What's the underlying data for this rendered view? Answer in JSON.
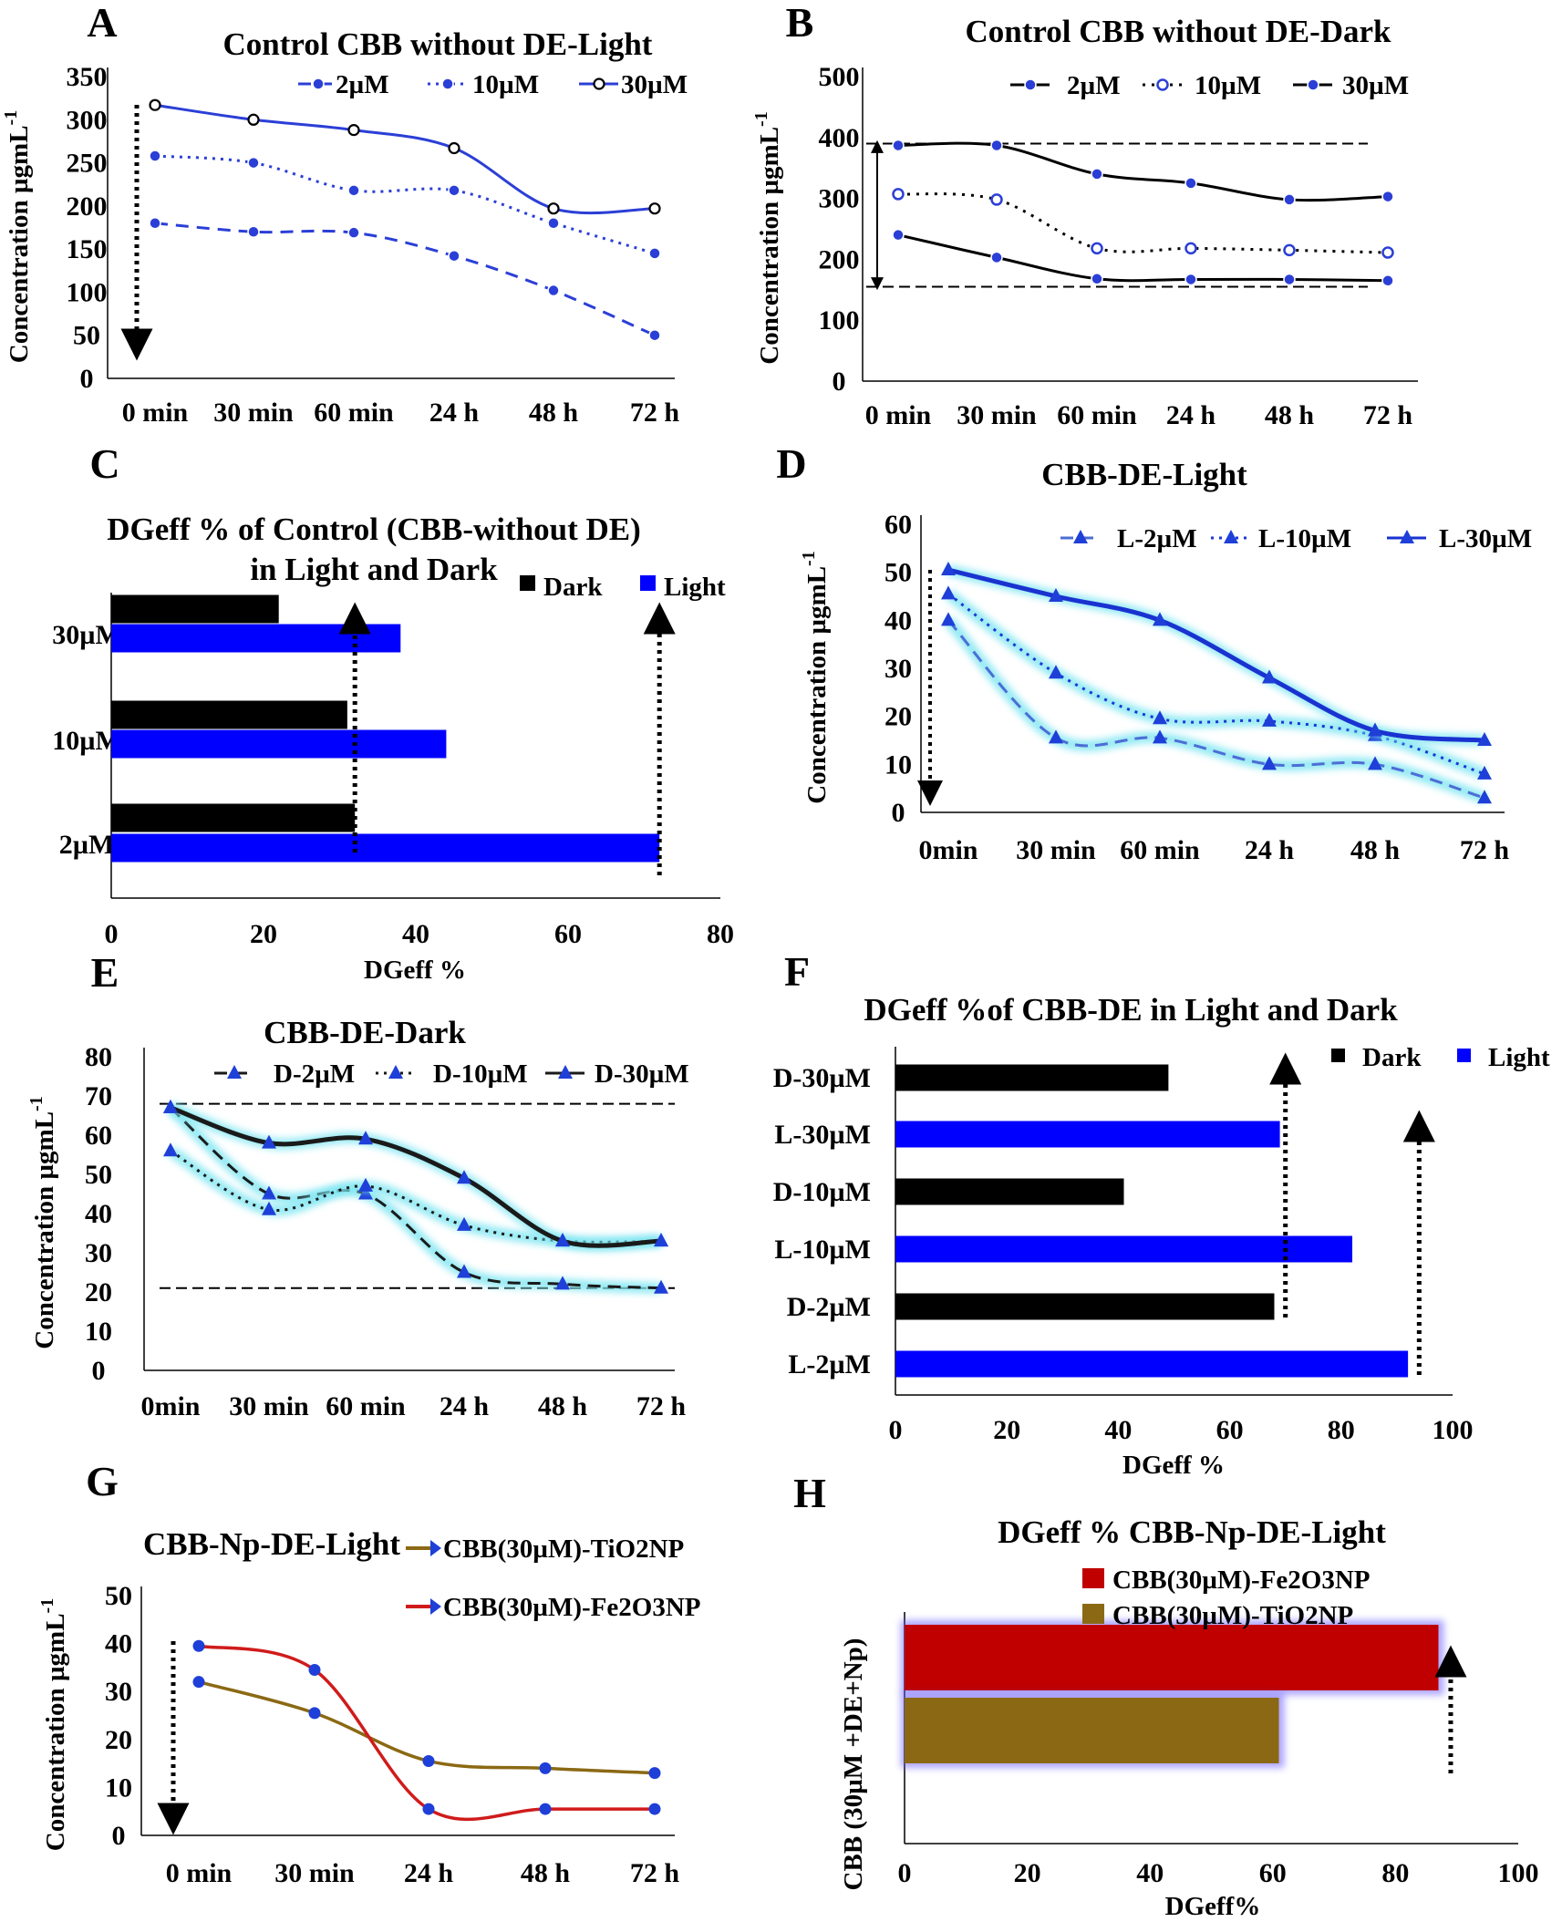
{
  "chart_data": [
    {
      "id": "A",
      "panel_letter": "A",
      "type": "line",
      "title": "Control CBB without DE-Light",
      "ylabel": "Concentration µgmL",
      "ylabel_sup": "-1",
      "xlabel": "",
      "categories": [
        "0 min",
        "30 min",
        "60 min",
        "24 h",
        "48 h",
        "72 h"
      ],
      "ylim": [
        0,
        350
      ],
      "yticks": [
        0,
        50,
        100,
        150,
        200,
        250,
        300,
        350
      ],
      "legend_position": "top-right",
      "series": [
        {
          "name": "2µM",
          "values": [
            180,
            170,
            169,
            142,
            102,
            50
          ],
          "color": "#2b3fd6",
          "dash": "14,9",
          "marker": "dot-blue"
        },
        {
          "name": "10µM",
          "values": [
            258,
            250,
            218,
            218,
            180,
            145
          ],
          "color": "#2b3fd6",
          "dash": "3,6",
          "marker": "dot-blue"
        },
        {
          "name": "30µM",
          "values": [
            317,
            300,
            288,
            267,
            197,
            197
          ],
          "color": "#2b3fd6",
          "dash": "",
          "marker": "open-black"
        }
      ],
      "annotations": [
        "dotted down arrow at 0 min"
      ]
    },
    {
      "id": "B",
      "panel_letter": "B",
      "type": "line",
      "title": "Control CBB without DE-Dark",
      "ylabel": "Concentration µgmL",
      "ylabel_sup": "-1",
      "xlabel": "",
      "categories": [
        "0 min",
        "30 min",
        "60 min",
        "24 h",
        "48 h",
        "72 h"
      ],
      "ylim": [
        0,
        500
      ],
      "yticks": [
        0,
        100,
        200,
        300,
        400,
        500
      ],
      "legend_position": "top-right",
      "series": [
        {
          "name": "2µM",
          "values": [
            240,
            203,
            168,
            167,
            167,
            165
          ],
          "color": "#000000",
          "dash": "",
          "marker": "dot-blue"
        },
        {
          "name": "10µM",
          "values": [
            307,
            298,
            218,
            218,
            215,
            211
          ],
          "color": "#000000",
          "dash": "3,7",
          "marker": "open-blue"
        },
        {
          "name": "30µM",
          "values": [
            387,
            387,
            340,
            325,
            298,
            303
          ],
          "color": "#000000",
          "dash": "",
          "marker": "dot-blue"
        }
      ],
      "annotations": [
        "dashed reference lines at ~390 and ~155",
        "double-headed arrow between them"
      ]
    },
    {
      "id": "C",
      "panel_letter": "C",
      "type": "bar",
      "orientation": "horizontal",
      "title": [
        "DGeff % of Control (CBB-without DE)",
        "in Light and Dark"
      ],
      "xlabel": "DGeff %",
      "xlim": [
        0,
        80
      ],
      "xticks": [
        0,
        20,
        40,
        60,
        80
      ],
      "categories": [
        "30µM",
        "10µM",
        "2µM"
      ],
      "legend_position": "top-right",
      "series": [
        {
          "name": "Dark",
          "values": [
            22,
            31,
            32
          ],
          "color": "#000000"
        },
        {
          "name": "Light",
          "values": [
            38,
            44,
            72
          ],
          "color": "#0000ff"
        }
      ],
      "annotations": [
        "dotted up arrows at ~32 and ~72"
      ]
    },
    {
      "id": "D",
      "panel_letter": "D",
      "type": "line",
      "title": "CBB-DE-Light",
      "ylabel": "Concentration µgmL",
      "ylabel_sup": "-1",
      "xlabel": "",
      "categories": [
        "0min",
        "30 min",
        "60 min",
        "24 h",
        "48 h",
        "72 h"
      ],
      "ylim": [
        0,
        60
      ],
      "yticks": [
        0,
        10,
        20,
        30,
        40,
        50,
        60
      ],
      "legend_position": "top-right",
      "series": [
        {
          "name": "L-2µM",
          "values": [
            40,
            15.5,
            15.5,
            10,
            10,
            3
          ],
          "color": "#4d6dd6",
          "dash": "14,8",
          "marker": "triangle"
        },
        {
          "name": "L-10µM",
          "values": [
            45.5,
            29,
            19.5,
            19,
            16,
            8
          ],
          "color": "#1d35d6",
          "dash": "3,6",
          "marker": "triangle"
        },
        {
          "name": "L-30µM",
          "values": [
            50.5,
            45,
            40,
            28,
            17,
            15
          ],
          "color": "#1a32d0",
          "dash": "",
          "marker": "triangle"
        }
      ],
      "annotations": [
        "dotted down arrow at 0min"
      ]
    },
    {
      "id": "E",
      "panel_letter": "E",
      "type": "line",
      "title": "CBB-DE-Dark",
      "ylabel": "Concentration µgmL",
      "ylabel_sup": "-1",
      "xlabel": "",
      "categories": [
        "0min",
        "30 min",
        "60 min",
        "24 h",
        "48 h",
        "72 h"
      ],
      "ylim": [
        0,
        80
      ],
      "yticks": [
        0,
        10,
        20,
        30,
        40,
        50,
        60,
        70,
        80
      ],
      "legend_position": "top",
      "series": [
        {
          "name": "D-2µM",
          "values": [
            67,
            45,
            45,
            25,
            22,
            21
          ],
          "color": "#1a1a1a",
          "dash": "14,8",
          "marker": "triangle"
        },
        {
          "name": "D-10µM",
          "values": [
            56,
            41,
            47,
            37,
            33,
            33
          ],
          "color": "#1a1a1a",
          "dash": "3,6",
          "marker": "triangle"
        },
        {
          "name": "D-30µM",
          "values": [
            67,
            58,
            59,
            49,
            33,
            33
          ],
          "color": "#1a1a1a",
          "dash": "",
          "marker": "triangle"
        }
      ],
      "annotations": [
        "dashed reference lines at ~68 and ~21"
      ]
    },
    {
      "id": "F",
      "panel_letter": "F",
      "type": "bar",
      "orientation": "horizontal",
      "title": "DGeff %of CBB-DE in Light and Dark",
      "xlabel": "DGeff %",
      "xlim": [
        0,
        100
      ],
      "xticks": [
        0,
        20,
        40,
        60,
        80,
        100
      ],
      "categories": [
        "D-30µM",
        "L-30µM",
        "D-10µM",
        "L-10µM",
        "D-2µM",
        "L-2µM"
      ],
      "values": [
        49,
        69,
        41,
        82,
        68,
        92
      ],
      "colors": [
        "#000000",
        "#0000ff",
        "#000000",
        "#0000ff",
        "#000000",
        "#0000ff"
      ],
      "legend_position": "top-right",
      "legend": [
        {
          "name": "Dark",
          "color": "#000000"
        },
        {
          "name": "Light",
          "color": "#0000ff"
        }
      ],
      "annotations": [
        "dotted up arrows at ~70 and ~94"
      ]
    },
    {
      "id": "G",
      "panel_letter": "G",
      "type": "line",
      "title": "CBB-Np-DE-Light",
      "ylabel": "Concentration µgmL",
      "ylabel_sup": "-1",
      "xlabel": "",
      "categories": [
        "0 min",
        "30 min",
        "24 h",
        "48 h",
        "72 h"
      ],
      "ylim": [
        0,
        50
      ],
      "yticks": [
        0,
        10,
        20,
        30,
        40,
        50
      ],
      "legend_position": "top-right",
      "series": [
        {
          "name": "CBB(30µM)-TiO2NP",
          "values": [
            32,
            25.5,
            15.5,
            14,
            13
          ],
          "color": "#8b6914"
        },
        {
          "name": "CBB(30µM)-Fe2O3NP",
          "values": [
            39.5,
            34.5,
            5.5,
            5.5,
            5.5
          ],
          "color": "#d01b1b"
        }
      ],
      "annotations": [
        "dotted down arrow at 0 min"
      ]
    },
    {
      "id": "H",
      "panel_letter": "H",
      "type": "bar",
      "orientation": "horizontal",
      "title": "DGeff % CBB-Np-DE-Light",
      "xlabel": "DGeff%",
      "ylabel": "CBB (30µM +DE+Np)",
      "xlim": [
        0,
        100
      ],
      "xticks": [
        0,
        20,
        40,
        60,
        80,
        100
      ],
      "legend_position": "top",
      "series": [
        {
          "name": "CBB(30µM)-Fe2O3NP",
          "value": 87,
          "color": "#c00000"
        },
        {
          "name": "CBB(30µM)-TiO2NP",
          "value": 61,
          "color": "#8b6914"
        }
      ],
      "annotations": [
        "dotted up arrow at ~89"
      ]
    }
  ]
}
